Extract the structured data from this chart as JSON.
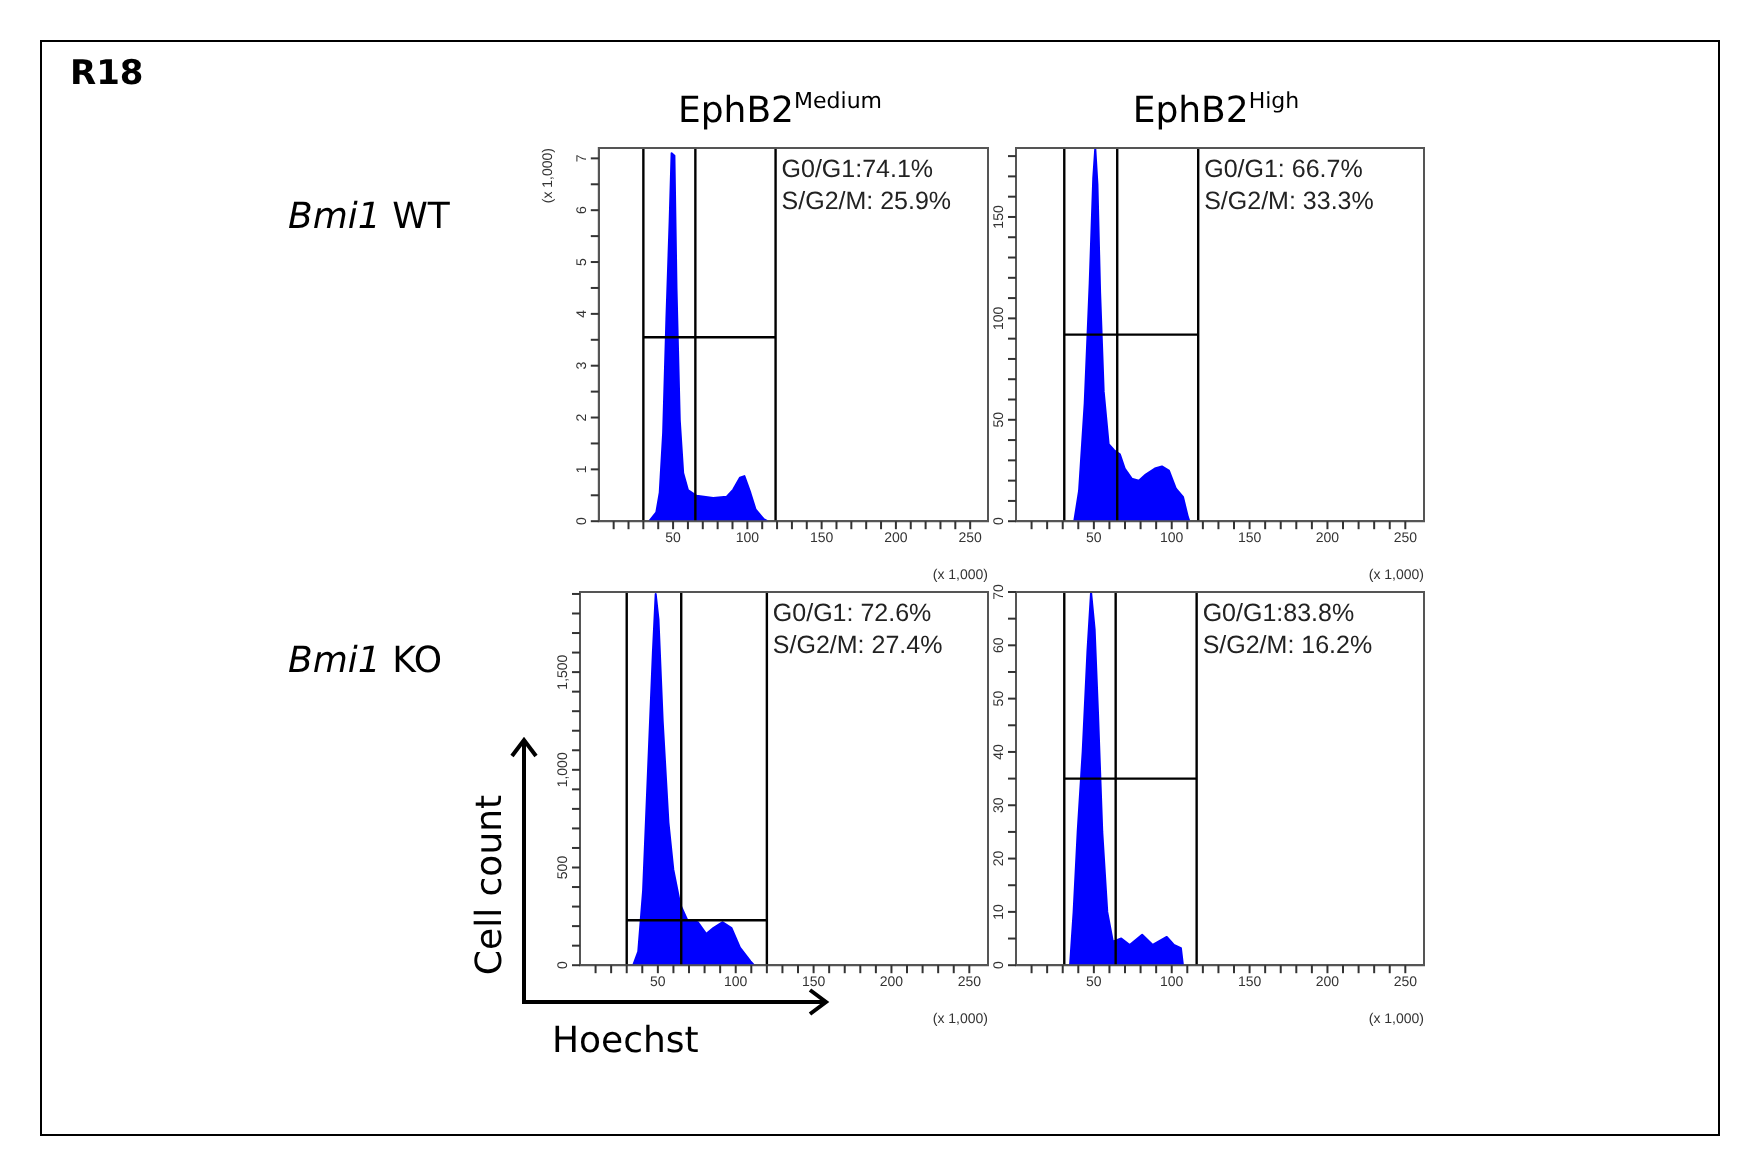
{
  "chart_data": [
    {
      "type": "other",
      "title": "R18",
      "annotations": [
        "Bmi1 WT",
        "Bmi1 KO"
      ],
      "ylabel": "Cell count",
      "xlabel": "Hoechst"
    },
    {
      "type": "area",
      "title": "EphB2$^{Medium}$",
      "xlabel": "(x 1,000)",
      "ylabel": "(x 1,000)",
      "annotations": [
        "G0/G1:74.1%",
        "S/G2/M: 25.9%"
      ],
      "xlim": [
        0,
        262
      ],
      "xticks": [
        {
          "value": 10,
          "label": null
        },
        {
          "value": 20,
          "label": null
        },
        {
          "value": 30,
          "label": null
        },
        {
          "value": 40,
          "label": null
        },
        50,
        {
          "value": 60,
          "label": null
        },
        {
          "value": 70,
          "label": null
        },
        {
          "value": 80,
          "label": null
        },
        {
          "value": 90,
          "label": null
        },
        100,
        {
          "value": 110,
          "label": null
        },
        {
          "value": 120,
          "label": null
        },
        {
          "value": 130,
          "label": null
        },
        {
          "value": 140,
          "label": null
        },
        150,
        {
          "value": 160,
          "label": null
        },
        {
          "value": 170,
          "label": null
        },
        {
          "value": 180,
          "label": null
        },
        {
          "value": 190,
          "label": null
        },
        200,
        {
          "value": 210,
          "label": null
        },
        {
          "value": 220,
          "label": null
        },
        {
          "value": 230,
          "label": null
        },
        {
          "value": 240,
          "label": null
        },
        250
      ],
      "ylim": [
        0,
        7.2
      ],
      "yticks": [
        0,
        {
          "value": 0.5,
          "label": null
        },
        1,
        {
          "value": 1.5,
          "label": null
        },
        2,
        {
          "value": 2.5,
          "label": null
        },
        3,
        {
          "value": 3.5,
          "label": null
        },
        4,
        {
          "value": 4.5,
          "label": null
        },
        5,
        {
          "value": 5.5,
          "label": null
        },
        6,
        {
          "value": 6.5,
          "label": null
        },
        7
      ],
      "ref_lines": [
        {
          "axis": "x",
          "value": 30,
          "color": "#000000"
        },
        {
          "axis": "x",
          "value": 65,
          "color": "#000000"
        },
        {
          "axis": "x",
          "value": 119,
          "color": "#000000"
        }
      ],
      "series": [
        {
          "type": "area",
          "color": "#0000ff",
          "x": [
            34,
            38.7,
            41,
            43.3,
            45.5,
            47.7,
            49,
            50.9,
            52.3,
            54.5,
            56.8,
            60,
            65.8,
            77,
            86,
            90.5,
            95,
            98,
            102,
            105.5,
            111,
            113.5
          ],
          "values": [
            0,
            0.17,
            0.55,
            1.7,
            3.9,
            5.8,
            7.1,
            7.05,
            4.5,
            1.95,
            0.93,
            0.6,
            0.49,
            0.45,
            0.47,
            0.61,
            0.84,
            0.87,
            0.55,
            0.23,
            0.04,
            0
          ]
        },
        {
          "type": "line",
          "color": "#000000",
          "x": [
            30,
            119
          ],
          "values": [
            3.55,
            3.55
          ]
        }
      ]
    },
    {
      "type": "area",
      "title": "EphB2$^{High}$",
      "xlabel": "(x 1,000)",
      "annotations": [
        "G0/G1: 66.7%",
        "S/G2/M: 33.3%"
      ],
      "xlim": [
        0,
        262
      ],
      "xticks": [
        {
          "value": 10,
          "label": null
        },
        {
          "value": 20,
          "label": null
        },
        {
          "value": 30,
          "label": null
        },
        {
          "value": 40,
          "label": null
        },
        50,
        {
          "value": 60,
          "label": null
        },
        {
          "value": 70,
          "label": null
        },
        {
          "value": 80,
          "label": null
        },
        {
          "value": 90,
          "label": null
        },
        100,
        {
          "value": 110,
          "label": null
        },
        {
          "value": 120,
          "label": null
        },
        {
          "value": 130,
          "label": null
        },
        {
          "value": 140,
          "label": null
        },
        150,
        {
          "value": 160,
          "label": null
        },
        {
          "value": 170,
          "label": null
        },
        {
          "value": 180,
          "label": null
        },
        {
          "value": 190,
          "label": null
        },
        200,
        {
          "value": 210,
          "label": null
        },
        {
          "value": 220,
          "label": null
        },
        {
          "value": 230,
          "label": null
        },
        {
          "value": 240,
          "label": null
        },
        250
      ],
      "ylim": [
        0,
        184
      ],
      "yticks": [
        0,
        {
          "value": 10,
          "label": null
        },
        {
          "value": 20,
          "label": null
        },
        {
          "value": 30,
          "label": null
        },
        {
          "value": 40,
          "label": null
        },
        50,
        {
          "value": 60,
          "label": null
        },
        {
          "value": 70,
          "label": null
        },
        {
          "value": 80,
          "label": null
        },
        {
          "value": 90,
          "label": null
        },
        100,
        {
          "value": 110,
          "label": null
        },
        {
          "value": 120,
          "label": null
        },
        {
          "value": 130,
          "label": null
        },
        {
          "value": 140,
          "label": null
        },
        150,
        {
          "value": 160,
          "label": null
        },
        {
          "value": 170,
          "label": null
        },
        {
          "value": 180,
          "label": null
        }
      ],
      "ref_lines": [
        {
          "axis": "x",
          "value": 31,
          "color": "#000000"
        },
        {
          "axis": "x",
          "value": 65,
          "color": "#000000"
        },
        {
          "axis": "x",
          "value": 117,
          "color": "#000000"
        }
      ],
      "series": [
        {
          "type": "area",
          "color": "#0000ff",
          "x": [
            37.4,
            40.5,
            44.1,
            47.3,
            49.6,
            50.9,
            52.3,
            54,
            56.3,
            59.5,
            63,
            66.7,
            69.8,
            74.3,
            78.9,
            83.3,
            89.2,
            93.7,
            98.2,
            102.7,
            107.2,
            110.4,
            111.3
          ],
          "values": [
            0,
            15,
            58,
            117,
            169,
            184,
            166,
            113,
            64,
            38,
            35,
            33,
            26,
            21,
            20,
            23,
            26,
            27,
            25,
            16,
            12,
            2,
            0
          ]
        },
        {
          "type": "line",
          "color": "#000000",
          "x": [
            31,
            117
          ],
          "values": [
            92,
            92
          ]
        }
      ]
    },
    {
      "type": "area",
      "xlabel": "(x 1,000)",
      "annotations": [
        "G0/G1: 72.6%",
        "S/G2/M: 27.4%"
      ],
      "xlim": [
        0,
        262
      ],
      "xticks": [
        {
          "value": 10,
          "label": null
        },
        {
          "value": 20,
          "label": null
        },
        {
          "value": 30,
          "label": null
        },
        {
          "value": 40,
          "label": null
        },
        50,
        {
          "value": 60,
          "label": null
        },
        {
          "value": 70,
          "label": null
        },
        {
          "value": 80,
          "label": null
        },
        {
          "value": 90,
          "label": null
        },
        100,
        {
          "value": 110,
          "label": null
        },
        {
          "value": 120,
          "label": null
        },
        {
          "value": 130,
          "label": null
        },
        {
          "value": 140,
          "label": null
        },
        150,
        {
          "value": 160,
          "label": null
        },
        {
          "value": 170,
          "label": null
        },
        {
          "value": 180,
          "label": null
        },
        {
          "value": 190,
          "label": null
        },
        200,
        {
          "value": 210,
          "label": null
        },
        {
          "value": 220,
          "label": null
        },
        {
          "value": 230,
          "label": null
        },
        {
          "value": 240,
          "label": null
        },
        250
      ],
      "ylim": [
        0,
        1910
      ],
      "yticks": [
        0,
        {
          "value": 100,
          "label": null
        },
        {
          "value": 200,
          "label": null
        },
        {
          "value": 300,
          "label": null
        },
        {
          "value": 400,
          "label": null
        },
        500,
        {
          "value": 600,
          "label": null
        },
        {
          "value": 700,
          "label": null
        },
        {
          "value": 800,
          "label": null
        },
        {
          "value": 900,
          "label": null
        },
        {
          "value": 1000,
          "label": "1,000"
        },
        {
          "value": 1100,
          "label": null
        },
        {
          "value": 1200,
          "label": null
        },
        {
          "value": 1300,
          "label": null
        },
        {
          "value": 1400,
          "label": null
        },
        {
          "value": 1500,
          "label": "1,500"
        },
        {
          "value": 1600,
          "label": null
        },
        {
          "value": 1700,
          "label": null
        },
        {
          "value": 1800,
          "label": null
        },
        {
          "value": 1900,
          "label": null
        }
      ],
      "ref_lines": [
        {
          "axis": "x",
          "value": 30,
          "color": "#000000"
        },
        {
          "axis": "x",
          "value": 65,
          "color": "#000000"
        },
        {
          "axis": "x",
          "value": 120,
          "color": "#000000"
        }
      ],
      "series": [
        {
          "type": "area",
          "color": "#0000ff",
          "x": [
            34.2,
            37.4,
            40.5,
            44.1,
            46.8,
            48.6,
            50.4,
            53.1,
            56.8,
            59.9,
            64.4,
            68.9,
            75.7,
            81,
            85.6,
            91.4,
            97.3,
            102.7,
            109.5,
            111.7
          ],
          "values": [
            0,
            70,
            380,
            1080,
            1600,
            1900,
            1770,
            1250,
            730,
            490,
            310,
            230,
            220,
            160,
            190,
            220,
            190,
            90,
            20,
            0
          ]
        },
        {
          "type": "line",
          "color": "#000000",
          "x": [
            30,
            120
          ],
          "values": [
            230,
            230
          ]
        }
      ]
    },
    {
      "type": "area",
      "xlabel": "(x 1,000)",
      "annotations": [
        "G0/G1:83.8%",
        "S/G2/M: 16.2%"
      ],
      "xlim": [
        0,
        262
      ],
      "xticks": [
        {
          "value": 10,
          "label": null
        },
        {
          "value": 20,
          "label": null
        },
        {
          "value": 30,
          "label": null
        },
        {
          "value": 40,
          "label": null
        },
        50,
        {
          "value": 60,
          "label": null
        },
        {
          "value": 70,
          "label": null
        },
        {
          "value": 80,
          "label": null
        },
        {
          "value": 90,
          "label": null
        },
        100,
        {
          "value": 110,
          "label": null
        },
        {
          "value": 120,
          "label": null
        },
        {
          "value": 130,
          "label": null
        },
        {
          "value": 140,
          "label": null
        },
        150,
        {
          "value": 160,
          "label": null
        },
        {
          "value": 170,
          "label": null
        },
        {
          "value": 180,
          "label": null
        },
        {
          "value": 190,
          "label": null
        },
        200,
        {
          "value": 210,
          "label": null
        },
        {
          "value": 220,
          "label": null
        },
        {
          "value": 230,
          "label": null
        },
        {
          "value": 240,
          "label": null
        },
        250
      ],
      "ylim": [
        0,
        70
      ],
      "yticks": [
        0,
        {
          "value": 5,
          "label": null
        },
        10,
        {
          "value": 15,
          "label": null
        },
        20,
        {
          "value": 25,
          "label": null
        },
        30,
        {
          "value": 35,
          "label": null
        },
        40,
        {
          "value": 45,
          "label": null
        },
        50,
        {
          "value": 55,
          "label": null
        },
        60,
        {
          "value": 65,
          "label": null
        },
        70
      ],
      "ref_lines": [
        {
          "axis": "x",
          "value": 31,
          "color": "#000000"
        },
        {
          "axis": "x",
          "value": 64,
          "color": "#000000"
        },
        {
          "axis": "x",
          "value": 116,
          "color": "#000000"
        }
      ],
      "series": [
        {
          "type": "area",
          "color": "#0000ff",
          "x": [
            34.7,
            37,
            39.6,
            42.8,
            45.9,
            48.2,
            50.5,
            52.7,
            55.4,
            58.6,
            62.2,
            67.6,
            73,
            81,
            87.8,
            96.8,
            101.4,
            105.9,
            107.2
          ],
          "values": [
            0,
            10,
            25,
            40,
            59,
            70,
            63,
            47,
            25,
            10,
            4.4,
            5,
            3.8,
            5.7,
            3.8,
            5.3,
            3.8,
            3.2,
            0
          ]
        },
        {
          "type": "line",
          "color": "#000000",
          "x": [
            31,
            116
          ],
          "values": [
            35,
            35
          ]
        }
      ]
    }
  ]
}
